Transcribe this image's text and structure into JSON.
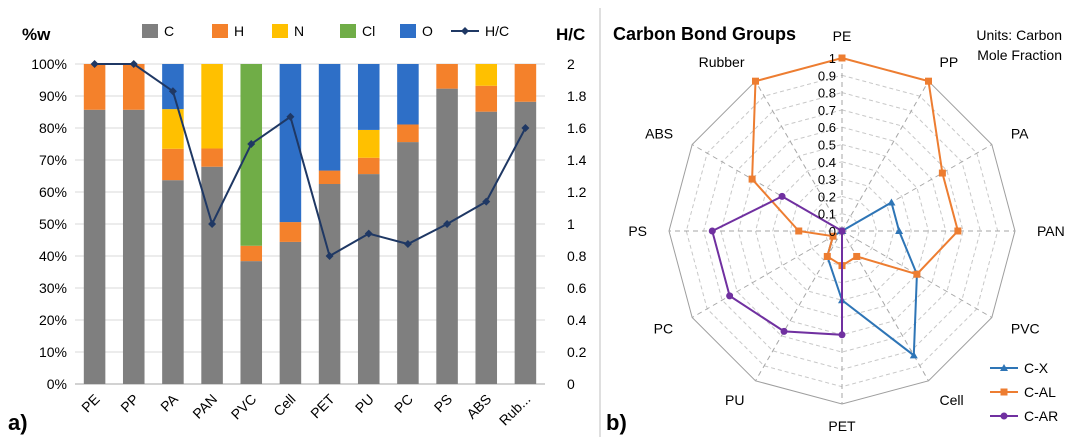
{
  "chart_data": [
    {
      "type": "bar",
      "subtype": "stacked-bar-with-line",
      "panel_label": "a)",
      "left_axis_title": "%w",
      "right_axis_title": "H/C",
      "categories": [
        "PE",
        "PP",
        "PA",
        "PAN",
        "PVC",
        "Cell",
        "PET",
        "PU",
        "PC",
        "PS",
        "ABS",
        "Rub..."
      ],
      "y_ticks": [
        "0%",
        "10%",
        "20%",
        "30%",
        "40%",
        "50%",
        "60%",
        "70%",
        "80%",
        "90%",
        "100%"
      ],
      "y2_ticks": [
        "0",
        "0.2",
        "0.4",
        "0.6",
        "0.8",
        "1",
        "1.2",
        "1.4",
        "1.6",
        "1.8",
        "2"
      ],
      "ylim": [
        0,
        100
      ],
      "y2lim": [
        0,
        2
      ],
      "grid": "horizontal",
      "legend_position": "top",
      "series": [
        {
          "name": "C",
          "color": "#7f7f7f",
          "values": [
            85.7,
            85.7,
            63.7,
            67.9,
            38.4,
            44.4,
            62.5,
            65.6,
            75.6,
            92.3,
            85.1,
            88.2
          ]
        },
        {
          "name": "H",
          "color": "#f4812b",
          "values": [
            14.3,
            14.3,
            9.8,
            5.7,
            4.8,
            6.2,
            4.2,
            5.1,
            5.5,
            7.7,
            8.1,
            11.8
          ]
        },
        {
          "name": "N",
          "color": "#ffc000",
          "values": [
            0,
            0,
            12.4,
            26.4,
            0,
            0,
            0,
            8.7,
            0,
            0,
            6.8,
            0
          ]
        },
        {
          "name": "Cl",
          "color": "#70ad47",
          "values": [
            0,
            0,
            0,
            0,
            56.8,
            0,
            0,
            0,
            0,
            0,
            0,
            0
          ]
        },
        {
          "name": "O",
          "color": "#2e6fc7",
          "values": [
            0,
            0,
            14.1,
            0,
            0,
            49.4,
            33.3,
            20.6,
            18.9,
            0,
            0,
            0
          ]
        }
      ],
      "line_series": {
        "name": "H/C",
        "color": "#1f3864",
        "axis": "right",
        "values": [
          2,
          2,
          1.83,
          1,
          1.5,
          1.67,
          0.8,
          0.94,
          0.875,
          1,
          1.14,
          1.6
        ]
      }
    },
    {
      "type": "radar",
      "panel_label": "b)",
      "title": "Carbon Bond Groups",
      "note": "Units: Carbon Mole Fraction",
      "categories": [
        "PE",
        "PP",
        "PA",
        "PAN",
        "PVC",
        "Cell",
        "PET",
        "PU",
        "PC",
        "PS",
        "ABS",
        "Rubber"
      ],
      "r_ticks": [
        "0",
        "0.1",
        "0.2",
        "0.3",
        "0.4",
        "0.5",
        "0.6",
        "0.7",
        "0.8",
        "0.9",
        "1"
      ],
      "rlim": [
        0,
        1
      ],
      "legend_position": "bottom-right",
      "series": [
        {
          "name": "C-X",
          "color": "#2e75b6",
          "values": [
            0,
            0,
            0.33,
            0.33,
            0.5,
            0.83,
            0.4,
            0.17,
            0.06,
            0,
            0,
            0
          ]
        },
        {
          "name": "C-AL",
          "color": "#ed7d31",
          "values": [
            1,
            1,
            0.67,
            0.67,
            0.5,
            0.17,
            0.2,
            0.17,
            0.06,
            0.25,
            0.6,
            1
          ]
        },
        {
          "name": "C-AR",
          "color": "#7030a0",
          "values": [
            0,
            0,
            0,
            0,
            0,
            0,
            0.6,
            0.67,
            0.75,
            0.75,
            0.4,
            0
          ]
        }
      ]
    }
  ]
}
